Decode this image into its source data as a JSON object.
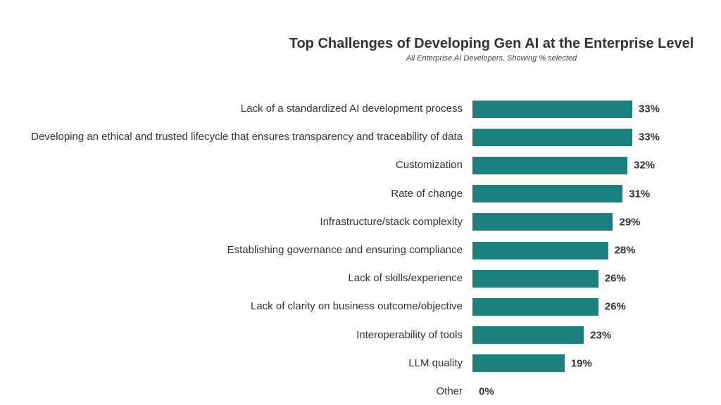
{
  "chart_data": {
    "type": "bar",
    "orientation": "horizontal",
    "title": "Top Challenges of Developing Gen AI at the Enterprise Level",
    "subtitle": "All Enterprise AI Developers, Showing % selected",
    "categories": [
      "Lack of a standardized AI development process",
      "Developing an ethical and trusted lifecycle that ensures transparency and traceability of data",
      "Customization",
      "Rate of change",
      "Infrastructure/stack complexity",
      "Establishing governance and ensuring compliance",
      "Lack of skills/experience",
      "Lack of clarity on business outcome/objective",
      "Interoperability of tools",
      "LLM quality",
      "Other"
    ],
    "values": [
      33,
      33,
      32,
      31,
      29,
      28,
      26,
      26,
      23,
      19,
      0
    ],
    "value_labels": [
      "33%",
      "33%",
      "32%",
      "31%",
      "29%",
      "28%",
      "26%",
      "26%",
      "23%",
      "19%",
      "0%"
    ],
    "color": "#1a7f7e"
  }
}
